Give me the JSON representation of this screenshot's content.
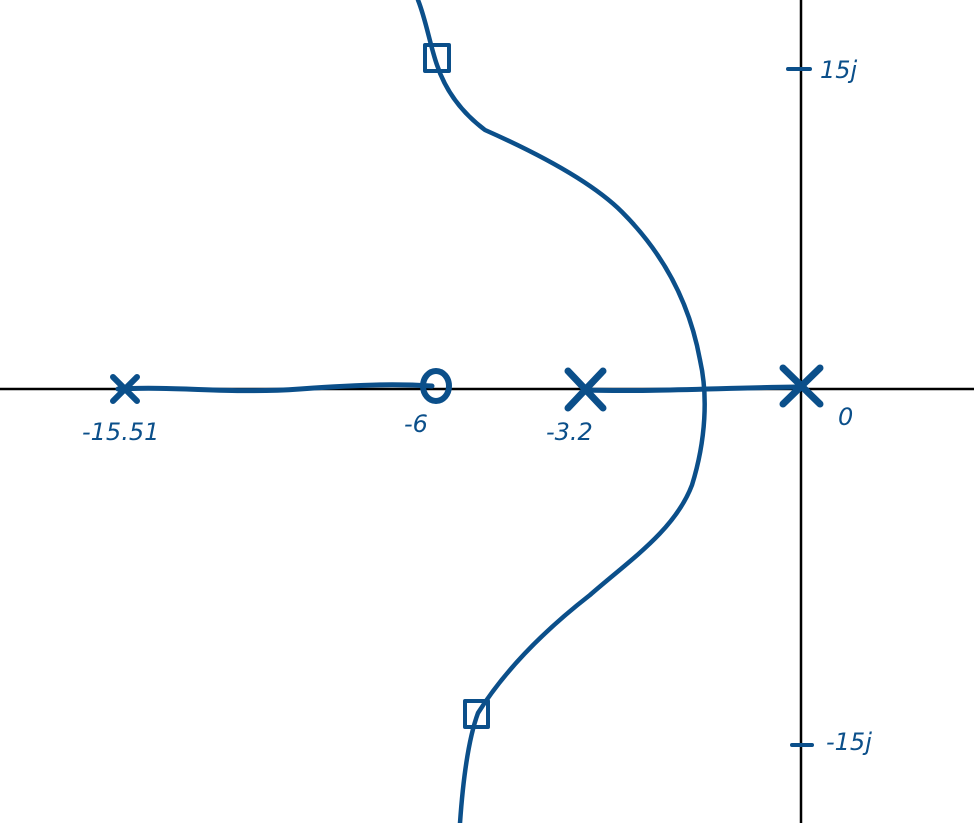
{
  "colors": {
    "ink": "#0b4f8a",
    "axis": "#000000",
    "background": "#ffffff"
  },
  "axes": {
    "imag_upper_label": "15j",
    "imag_lower_label": "-15j"
  },
  "poles": [
    {
      "label": "-15.51",
      "marker": "x"
    },
    {
      "label": "-3.2",
      "marker": "x"
    },
    {
      "label": "0",
      "marker": "x"
    }
  ],
  "zeros": [
    {
      "label": "-6",
      "marker": "o"
    }
  ],
  "markers": {
    "square_marker_icon": "square"
  }
}
